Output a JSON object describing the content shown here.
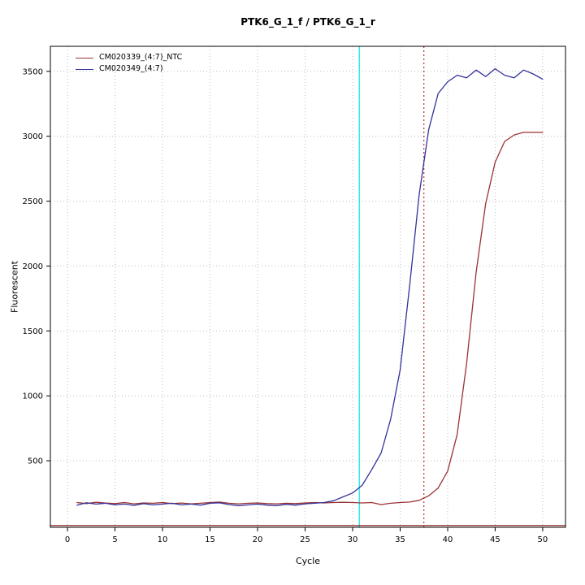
{
  "chart_data": {
    "type": "line",
    "title": "PTK6_G_1_f / PTK6_G_1_r",
    "xlabel": "Cycle",
    "ylabel": "Fluorescent",
    "xlim": [
      -1.8,
      52.4
    ],
    "ylim": [
      -13,
      3693
    ],
    "xticks": [
      0,
      5,
      10,
      15,
      20,
      25,
      30,
      35,
      40,
      45,
      50
    ],
    "yticks": [
      500,
      1000,
      1500,
      2000,
      2500,
      3000,
      3500
    ],
    "grid": true,
    "legend_position": "top-left",
    "x": [
      1,
      2,
      3,
      4,
      5,
      6,
      7,
      8,
      9,
      10,
      11,
      12,
      13,
      14,
      15,
      16,
      17,
      18,
      19,
      20,
      21,
      22,
      23,
      24,
      25,
      26,
      27,
      28,
      29,
      30,
      31,
      32,
      33,
      34,
      35,
      36,
      37,
      38,
      39,
      40,
      41,
      42,
      43,
      44,
      45,
      46,
      47,
      48,
      49,
      50
    ],
    "series": [
      {
        "name": "CM020339_(4:7)_NTC",
        "color": "#9b3232",
        "values": [
          178,
          170,
          180,
          174,
          170,
          178,
          168,
          175,
          172,
          178,
          170,
          174,
          168,
          172,
          178,
          182,
          172,
          168,
          172,
          175,
          170,
          168,
          172,
          170,
          175,
          178,
          175,
          178,
          180,
          178,
          175,
          178,
          162,
          172,
          178,
          182,
          195,
          230,
          290,
          420,
          700,
          1250,
          1950,
          2480,
          2800,
          2960,
          3010,
          3030,
          3030,
          3030
        ]
      },
      {
        "name": "CM020349_(4:7)",
        "color": "#32329b",
        "values": [
          158,
          176,
          166,
          172,
          160,
          166,
          156,
          170,
          160,
          166,
          172,
          160,
          166,
          158,
          172,
          176,
          162,
          154,
          160,
          166,
          158,
          154,
          164,
          158,
          168,
          172,
          178,
          192,
          222,
          252,
          310,
          430,
          560,
          820,
          1200,
          1850,
          2550,
          3050,
          3330,
          3420,
          3470,
          3450,
          3510,
          3460,
          3520,
          3470,
          3450,
          3510,
          3480,
          3440
        ]
      }
    ],
    "vlines": [
      {
        "x": 30.7,
        "color": "#00e5e5",
        "style": "solid"
      },
      {
        "x": 37.5,
        "color": "#b03030",
        "style": "dotted"
      }
    ],
    "hlines": [
      {
        "y": 0,
        "color": "#8b2222",
        "style": "solid"
      }
    ]
  }
}
